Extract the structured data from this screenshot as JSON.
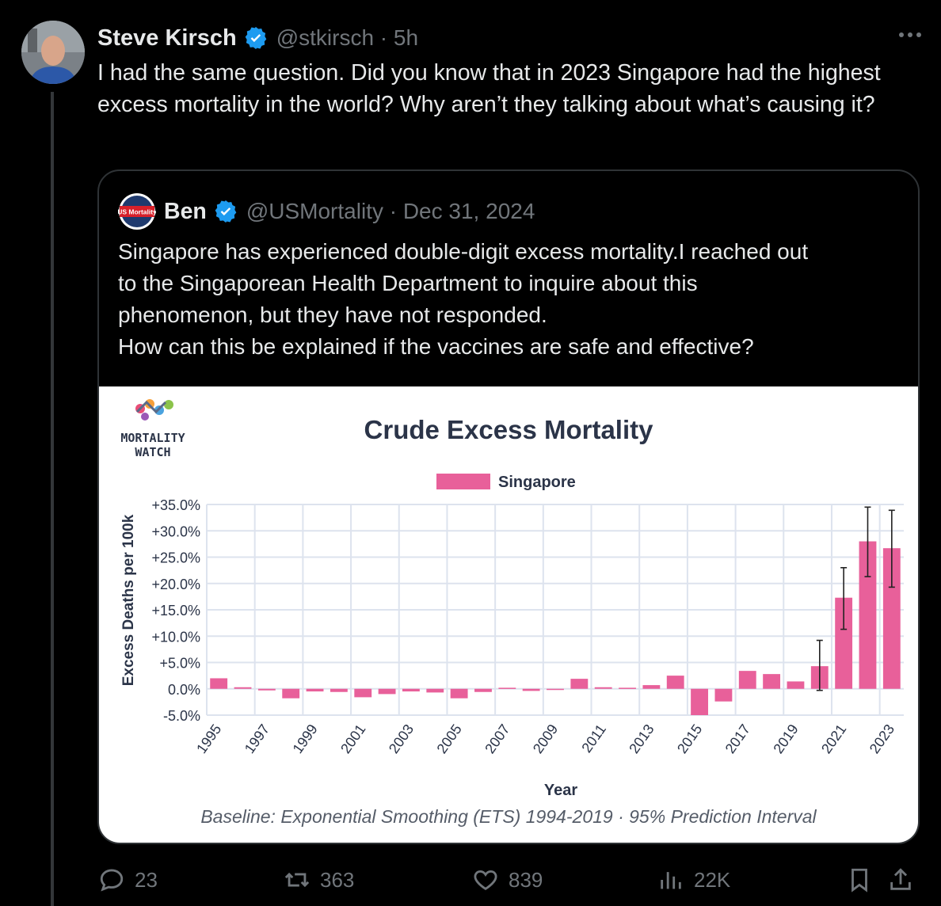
{
  "tweet": {
    "author": "Steve Kirsch",
    "handle": "@stkirsch · 5h",
    "text": "I had the same question. Did you know that in 2023 Singapore had the highest excess mortality in the world? Why aren’t they talking about what’s causing it?"
  },
  "quote": {
    "author": "Ben",
    "handle": "@USMortality · Dec 31, 2024",
    "avatar_label": "US Mortality",
    "lines": [
      "Singapore has experienced double-digit excess mortality.I reached out",
      "to the Singaporean Health Department to inquire about this",
      "phenomenon, but they have not responded.",
      "How can this be explained if the vaccines are safe and effective?"
    ]
  },
  "chart_logo": {
    "line1": "MORTALITY",
    "line2": "WATCH"
  },
  "chart_data": {
    "type": "bar",
    "title": "Crude Excess Mortality",
    "xlabel": "Year",
    "ylabel": "Excess Deaths per 100k",
    "caption": "Baseline: Exponential Smoothing (ETS) 1994-2019 · 95% Prediction Interval",
    "legend": "top",
    "grid": true,
    "ylim": [
      -5,
      35
    ],
    "yticks": [
      "+35.0%",
      "+30.0%",
      "+25.0%",
      "+20.0%",
      "+15.0%",
      "+10.0%",
      "+5.0%",
      "0.0%",
      "-5.0%"
    ],
    "xtick_labels": [
      "1995",
      "1997",
      "1999",
      "2001",
      "2003",
      "2005",
      "2007",
      "2009",
      "2011",
      "2013",
      "2015",
      "2017",
      "2019",
      "2021",
      "2023"
    ],
    "categories": [
      "1995",
      "1996",
      "1997",
      "1998",
      "1999",
      "2000",
      "2001",
      "2002",
      "2003",
      "2004",
      "2005",
      "2006",
      "2007",
      "2008",
      "2009",
      "2010",
      "2011",
      "2012",
      "2013",
      "2014",
      "2015",
      "2016",
      "2017",
      "2018",
      "2019",
      "2020",
      "2021",
      "2022",
      "2023"
    ],
    "series": [
      {
        "name": "Singapore",
        "color": "#e8609a",
        "values": [
          2.0,
          0.3,
          -0.3,
          -1.8,
          -0.5,
          -0.6,
          -1.6,
          -1.0,
          -0.5,
          -0.7,
          -1.8,
          -0.6,
          0.2,
          -0.4,
          0.0,
          1.9,
          0.3,
          0.2,
          0.7,
          2.5,
          -5.0,
          -2.4,
          3.4,
          2.8,
          1.4,
          4.3,
          17.3,
          28.0,
          26.7
        ],
        "error": [
          null,
          null,
          null,
          null,
          null,
          null,
          null,
          null,
          null,
          null,
          null,
          null,
          null,
          null,
          null,
          null,
          null,
          null,
          null,
          null,
          null,
          null,
          null,
          null,
          null,
          [
            -0.3,
            9.2
          ],
          [
            11.3,
            23.0
          ],
          [
            21.3,
            34.5
          ],
          [
            19.3,
            33.9
          ]
        ]
      }
    ]
  },
  "actions": {
    "replies": "23",
    "reposts": "363",
    "likes": "839",
    "views": "22K"
  }
}
